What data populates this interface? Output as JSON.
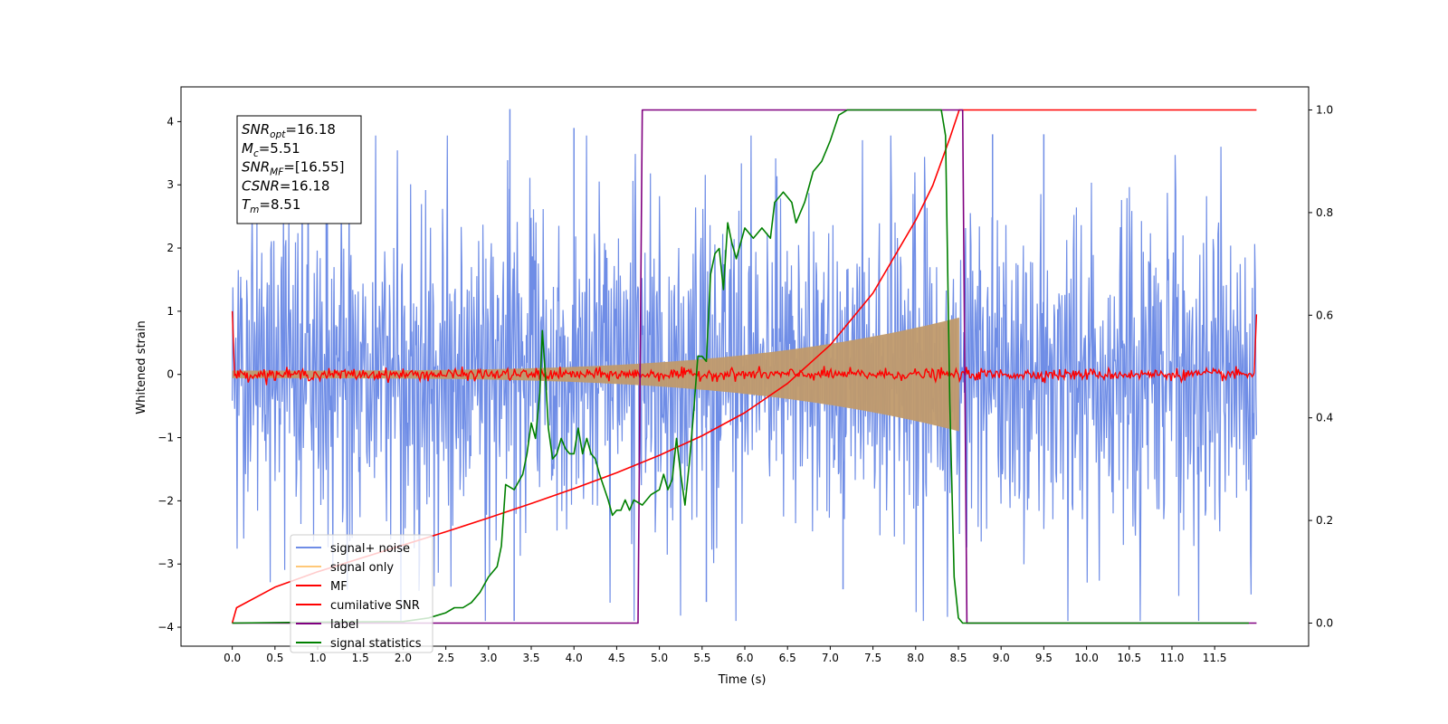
{
  "chart_data": {
    "type": "line",
    "xlabel": "Time (s)",
    "ylabel": "Whitened strain",
    "xlim": [
      -0.6,
      12.6
    ],
    "ylim": [
      -4.3,
      4.55
    ],
    "y2lim": [
      -0.045,
      1.045
    ],
    "x_ticks": [
      0.0,
      0.5,
      1.0,
      1.5,
      2.0,
      2.5,
      3.0,
      3.5,
      4.0,
      4.5,
      5.0,
      5.5,
      6.0,
      6.5,
      7.0,
      7.5,
      8.0,
      8.5,
      9.0,
      9.5,
      10.0,
      10.5,
      11.0,
      11.5
    ],
    "x_tick_labels": [
      "0.0",
      "0.5",
      "1.0",
      "1.5",
      "2.0",
      "2.5",
      "3.0",
      "3.5",
      "4.0",
      "4.5",
      "5.0",
      "5.5",
      "6.0",
      "6.5",
      "7.0",
      "7.5",
      "8.0",
      "8.5",
      "9.0",
      "9.5",
      "10.0",
      "10.5",
      "11.0",
      "11.5"
    ],
    "y_ticks": [
      -4,
      -3,
      -2,
      -1,
      0,
      1,
      2,
      3,
      4
    ],
    "y_tick_labels": [
      "−4",
      "−3",
      "−2",
      "−1",
      "0",
      "1",
      "2",
      "3",
      "4"
    ],
    "y2_ticks": [
      0.0,
      0.2,
      0.4,
      0.6,
      0.8,
      1.0
    ],
    "y2_tick_labels": [
      "0.0",
      "0.2",
      "0.4",
      "0.6",
      "0.8",
      "1.0"
    ],
    "grid": false,
    "legend_placement": "lower-left",
    "legend": [
      {
        "label": "signal+ noise",
        "color": "#6f8de6"
      },
      {
        "label": "signal only",
        "color": "#ffc878"
      },
      {
        "label": "MF",
        "color": "#ff0000"
      },
      {
        "label": "cumilative SNR",
        "color": "#ff0000"
      },
      {
        "label": "label",
        "color": "#800080"
      },
      {
        "label": "signal statistics",
        "color": "#008000"
      }
    ],
    "annotation": {
      "lines": [
        {
          "name": "SNR",
          "sub": "opt",
          "value": "=16.18"
        },
        {
          "name": "M",
          "sub": "c",
          "value": "=5.51"
        },
        {
          "name": "SNR",
          "sub": "MF",
          "value": "=[16.55]"
        },
        {
          "name": "CSNR",
          "sub": "",
          "value": "=16.18"
        },
        {
          "name": "T",
          "sub": "m",
          "value": "=8.51"
        }
      ]
    },
    "series": [
      {
        "name": "signal+ noise",
        "axis": "left",
        "style": "noise band",
        "x_range": [
          0.0,
          11.99
        ],
        "typical_range": [
          -1.6,
          1.6
        ],
        "max": 4.2,
        "min": -3.9,
        "color": "#6f8de6"
      },
      {
        "name": "signal only",
        "axis": "left",
        "style": "chirp envelope",
        "x_range": [
          0.0,
          8.51
        ],
        "start_amplitude": 0.06,
        "end_amplitude": 0.9,
        "color": "#c09a6b"
      },
      {
        "name": "MF",
        "axis": "left",
        "style": "noise band",
        "x_range": [
          0.0,
          11.99
        ],
        "typical_range": [
          -0.1,
          0.1
        ],
        "edge_values": [
          1.0,
          0.95
        ],
        "color": "#ff0000"
      },
      {
        "name": "cumilative SNR",
        "axis": "right",
        "x": [
          0.0,
          0.05,
          0.5,
          1.0,
          1.5,
          2.0,
          2.5,
          3.0,
          3.5,
          4.0,
          4.5,
          5.0,
          5.5,
          6.0,
          6.5,
          7.0,
          7.5,
          8.0,
          8.2,
          8.4,
          8.5,
          8.51,
          11.99
        ],
        "values": [
          0.0,
          0.03,
          0.07,
          0.1,
          0.126,
          0.152,
          0.178,
          0.205,
          0.233,
          0.262,
          0.293,
          0.327,
          0.365,
          0.41,
          0.467,
          0.542,
          0.643,
          0.785,
          0.853,
          0.945,
          0.995,
          1.0,
          1.0
        ],
        "color": "#ff0000"
      },
      {
        "name": "label",
        "axis": "right",
        "x": [
          0.0,
          4.75,
          4.8,
          8.55,
          8.6,
          11.99
        ],
        "values": [
          0.0,
          0.0,
          1.0,
          1.0,
          0.0,
          0.0
        ],
        "color": "#800080"
      },
      {
        "name": "signal statistics",
        "axis": "right",
        "x": [
          0.0,
          1.0,
          2.0,
          2.3,
          2.5,
          2.6,
          2.7,
          2.8,
          2.9,
          3.0,
          3.1,
          3.15,
          3.2,
          3.3,
          3.4,
          3.45,
          3.5,
          3.55,
          3.6,
          3.63,
          3.67,
          3.7,
          3.75,
          3.8,
          3.85,
          3.9,
          3.95,
          4.0,
          4.05,
          4.1,
          4.15,
          4.2,
          4.25,
          4.3,
          4.4,
          4.45,
          4.5,
          4.55,
          4.6,
          4.65,
          4.7,
          4.8,
          4.9,
          5.0,
          5.05,
          5.1,
          5.15,
          5.2,
          5.25,
          5.3,
          5.35,
          5.4,
          5.45,
          5.5,
          5.55,
          5.6,
          5.65,
          5.7,
          5.75,
          5.8,
          5.85,
          5.9,
          5.95,
          6.0,
          6.1,
          6.2,
          6.3,
          6.35,
          6.4,
          6.45,
          6.5,
          6.55,
          6.6,
          6.7,
          6.75,
          6.8,
          6.9,
          7.0,
          7.1,
          7.2,
          7.5,
          8.0,
          8.3,
          8.35,
          8.4,
          8.45,
          8.5,
          8.55,
          8.6,
          11.9
        ],
        "values": [
          0.0,
          0.002,
          0.003,
          0.01,
          0.02,
          0.03,
          0.03,
          0.04,
          0.06,
          0.09,
          0.11,
          0.15,
          0.27,
          0.26,
          0.29,
          0.33,
          0.39,
          0.36,
          0.45,
          0.57,
          0.47,
          0.38,
          0.32,
          0.33,
          0.36,
          0.34,
          0.33,
          0.33,
          0.38,
          0.33,
          0.36,
          0.33,
          0.32,
          0.29,
          0.24,
          0.21,
          0.22,
          0.22,
          0.24,
          0.22,
          0.24,
          0.23,
          0.25,
          0.26,
          0.29,
          0.26,
          0.28,
          0.36,
          0.29,
          0.23,
          0.31,
          0.41,
          0.52,
          0.52,
          0.51,
          0.68,
          0.72,
          0.73,
          0.65,
          0.78,
          0.74,
          0.71,
          0.74,
          0.77,
          0.75,
          0.77,
          0.75,
          0.82,
          0.83,
          0.84,
          0.83,
          0.82,
          0.78,
          0.82,
          0.85,
          0.88,
          0.9,
          0.94,
          0.99,
          1.0,
          1.0,
          1.0,
          1.0,
          0.95,
          0.43,
          0.09,
          0.01,
          0.0,
          0.0,
          0.0
        ],
        "color": "#008000"
      }
    ]
  }
}
